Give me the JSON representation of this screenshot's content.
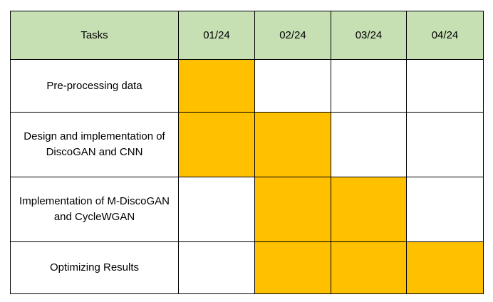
{
  "chart_data": {
    "type": "table",
    "header": {
      "task_label": "Tasks",
      "months": [
        "01/24",
        "02/24",
        "03/24",
        "04/24"
      ]
    },
    "tasks": [
      {
        "name": "Pre-processing data",
        "active": [
          true,
          false,
          false,
          false
        ]
      },
      {
        "name": "Design and implementation of DiscoGAN and CNN",
        "active": [
          true,
          true,
          false,
          false
        ]
      },
      {
        "name": "Implementation of M-DiscoGAN and CycleWGAN",
        "active": [
          false,
          true,
          true,
          false
        ]
      },
      {
        "name": "Optimizing Results",
        "active": [
          false,
          true,
          true,
          true
        ]
      }
    ],
    "colors": {
      "header_fill": "#c6e0b4",
      "active_fill": "#ffc000",
      "inactive_fill": "#ffffff",
      "border": "#000000"
    }
  }
}
